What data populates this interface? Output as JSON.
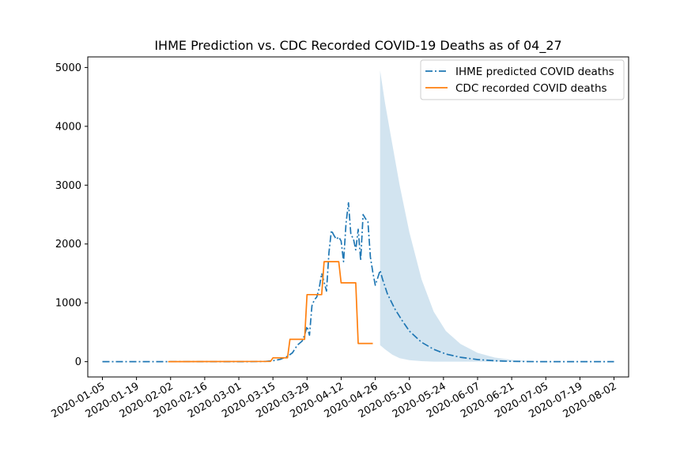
{
  "chart_data": {
    "type": "line",
    "title": "IHME Prediction vs. CDC Recorded COVID-19 Deaths as of 04_27",
    "xlabel": "",
    "ylabel": "",
    "x_axis": "date",
    "xlim": [
      "2019-12-30",
      "2020-08-08"
    ],
    "ylim": [
      -260,
      5180
    ],
    "x_ticks": [
      "2020-01-05",
      "2020-01-19",
      "2020-02-02",
      "2020-02-16",
      "2020-03-01",
      "2020-03-15",
      "2020-03-29",
      "2020-04-12",
      "2020-04-26",
      "2020-05-10",
      "2020-05-24",
      "2020-06-07",
      "2020-06-21",
      "2020-07-05",
      "2020-07-19",
      "2020-08-02"
    ],
    "y_ticks": [
      0,
      1000,
      2000,
      3000,
      4000,
      5000
    ],
    "grid": false,
    "legend_position": "upper right",
    "series": [
      {
        "name": "IHME predicted COVID deaths",
        "style": "dashdot",
        "color": "#1f77b4",
        "points": [
          [
            "2020-01-05",
            0
          ],
          [
            "2020-03-05",
            0
          ],
          [
            "2020-03-12",
            5
          ],
          [
            "2020-03-15",
            15
          ],
          [
            "2020-03-18",
            40
          ],
          [
            "2020-03-21",
            90
          ],
          [
            "2020-03-23",
            150
          ],
          [
            "2020-03-25",
            280
          ],
          [
            "2020-03-27",
            350
          ],
          [
            "2020-03-28",
            450
          ],
          [
            "2020-03-29",
            600
          ],
          [
            "2020-03-30",
            450
          ],
          [
            "2020-03-31",
            950
          ],
          [
            "2020-04-01",
            1050
          ],
          [
            "2020-04-02",
            1100
          ],
          [
            "2020-04-03",
            1250
          ],
          [
            "2020-04-04",
            1500
          ],
          [
            "2020-04-05",
            1350
          ],
          [
            "2020-04-06",
            1200
          ],
          [
            "2020-04-07",
            1850
          ],
          [
            "2020-04-08",
            2230
          ],
          [
            "2020-04-09",
            2150
          ],
          [
            "2020-04-10",
            2080
          ],
          [
            "2020-04-11",
            2120
          ],
          [
            "2020-04-12",
            2050
          ],
          [
            "2020-04-13",
            1700
          ],
          [
            "2020-04-14",
            2350
          ],
          [
            "2020-04-15",
            2700
          ],
          [
            "2020-04-16",
            2150
          ],
          [
            "2020-04-17",
            2100
          ],
          [
            "2020-04-18",
            1900
          ],
          [
            "2020-04-19",
            2250
          ],
          [
            "2020-04-20",
            1720
          ],
          [
            "2020-04-21",
            2500
          ],
          [
            "2020-04-22",
            2430
          ],
          [
            "2020-04-23",
            2380
          ],
          [
            "2020-04-24",
            1780
          ],
          [
            "2020-04-25",
            1520
          ],
          [
            "2020-04-26",
            1300
          ],
          [
            "2020-04-27",
            1420
          ],
          [
            "2020-04-28",
            1550
          ],
          [
            "2020-04-29",
            1400
          ],
          [
            "2020-05-01",
            1150
          ],
          [
            "2020-05-04",
            900
          ],
          [
            "2020-05-07",
            700
          ],
          [
            "2020-05-10",
            520
          ],
          [
            "2020-05-15",
            330
          ],
          [
            "2020-05-20",
            210
          ],
          [
            "2020-05-25",
            130
          ],
          [
            "2020-05-31",
            75
          ],
          [
            "2020-06-07",
            35
          ],
          [
            "2020-06-14",
            15
          ],
          [
            "2020-06-21",
            5
          ],
          [
            "2020-07-01",
            0
          ],
          [
            "2020-08-02",
            0
          ]
        ]
      },
      {
        "name": "CDC recorded COVID deaths",
        "style": "solid",
        "color": "#ff7f0e",
        "points": [
          [
            "2020-02-01",
            0
          ],
          [
            "2020-03-14",
            5
          ],
          [
            "2020-03-15",
            65
          ],
          [
            "2020-03-21",
            65
          ],
          [
            "2020-03-22",
            380
          ],
          [
            "2020-03-28",
            380
          ],
          [
            "2020-03-29",
            1140
          ],
          [
            "2020-04-04",
            1140
          ],
          [
            "2020-04-05",
            1700
          ],
          [
            "2020-04-11",
            1700
          ],
          [
            "2020-04-12",
            1340
          ],
          [
            "2020-04-18",
            1340
          ],
          [
            "2020-04-19",
            310
          ],
          [
            "2020-04-25",
            310
          ]
        ]
      }
    ],
    "uncertainty_band": {
      "color": "#1f77b4",
      "opacity": 0.2,
      "upper": [
        [
          "2020-04-28",
          4950
        ],
        [
          "2020-04-30",
          4400
        ],
        [
          "2020-05-03",
          3700
        ],
        [
          "2020-05-06",
          3000
        ],
        [
          "2020-05-10",
          2200
        ],
        [
          "2020-05-15",
          1400
        ],
        [
          "2020-05-20",
          850
        ],
        [
          "2020-05-25",
          520
        ],
        [
          "2020-05-31",
          300
        ],
        [
          "2020-06-07",
          150
        ],
        [
          "2020-06-14",
          70
        ],
        [
          "2020-06-21",
          30
        ],
        [
          "2020-06-28",
          10
        ],
        [
          "2020-07-05",
          0
        ]
      ],
      "lower": [
        [
          "2020-04-28",
          280
        ],
        [
          "2020-04-30",
          210
        ],
        [
          "2020-05-03",
          120
        ],
        [
          "2020-05-06",
          60
        ],
        [
          "2020-05-10",
          25
        ],
        [
          "2020-05-15",
          8
        ],
        [
          "2020-05-20",
          0
        ],
        [
          "2020-07-05",
          0
        ]
      ]
    }
  }
}
